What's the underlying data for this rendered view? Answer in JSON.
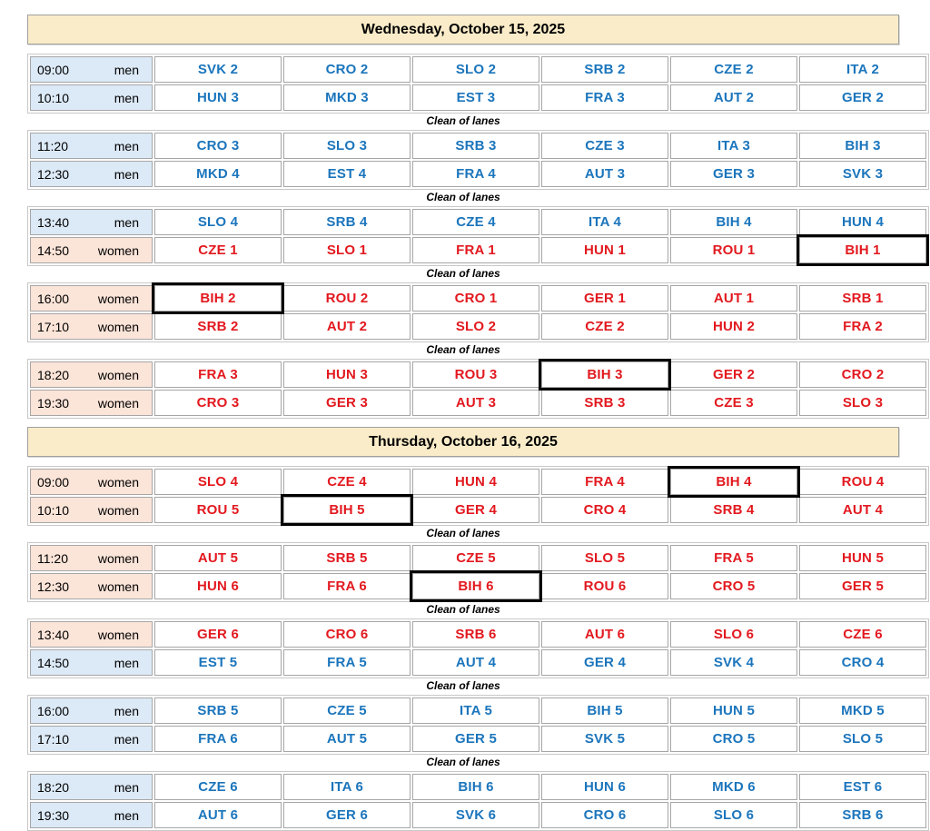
{
  "lanes_note": "Clean of lanes",
  "colors": {
    "header_bg": "#faecc9",
    "men_row_bg": "#dce9f6",
    "women_row_bg": "#fbe4d8",
    "men_text": "#1b75bc",
    "women_text": "#e2191f",
    "cell_border": "#a6a6a6",
    "highlight_box": "#000000"
  },
  "days": [
    {
      "title": "Wednesday, October 15, 2025",
      "blocks": [
        {
          "footer": true,
          "rows": [
            {
              "time": "09:00",
              "gender": "men",
              "cells": [
                "SVK 2",
                "CRO 2",
                "SLO 2",
                "SRB 2",
                "CZE 2",
                "ITA 2"
              ]
            },
            {
              "time": "10:10",
              "gender": "men",
              "cells": [
                "HUN 3",
                "MKD 3",
                "EST 3",
                "FRA 3",
                "AUT 2",
                "GER 2"
              ]
            }
          ]
        },
        {
          "footer": true,
          "rows": [
            {
              "time": "11:20",
              "gender": "men",
              "cells": [
                "CRO 3",
                "SLO 3",
                "SRB 3",
                "CZE 3",
                "ITA 3",
                "BIH 3"
              ]
            },
            {
              "time": "12:30",
              "gender": "men",
              "cells": [
                "MKD 4",
                "EST 4",
                "FRA 4",
                "AUT 3",
                "GER 3",
                "SVK 3"
              ]
            }
          ]
        },
        {
          "footer": true,
          "rows": [
            {
              "time": "13:40",
              "gender": "men",
              "cells": [
                "SLO 4",
                "SRB 4",
                "CZE 4",
                "ITA 4",
                "BIH 4",
                "HUN 4"
              ]
            },
            {
              "time": "14:50",
              "gender": "women",
              "cells": [
                "CZE 1",
                "SLO 1",
                "FRA 1",
                "HUN 1",
                "ROU 1",
                {
                  "label": "BIH 1",
                  "boxed": true
                }
              ]
            }
          ]
        },
        {
          "footer": true,
          "rows": [
            {
              "time": "16:00",
              "gender": "women",
              "cells": [
                {
                  "label": "BIH 2",
                  "boxed": true
                },
                "ROU 2",
                "CRO 1",
                "GER 1",
                "AUT 1",
                "SRB 1"
              ]
            },
            {
              "time": "17:10",
              "gender": "women",
              "cells": [
                "SRB 2",
                "AUT 2",
                "SLO 2",
                "CZE 2",
                "HUN 2",
                "FRA 2"
              ]
            }
          ]
        },
        {
          "footer": false,
          "rows": [
            {
              "time": "18:20",
              "gender": "women",
              "cells": [
                "FRA 3",
                "HUN 3",
                "ROU 3",
                {
                  "label": "BIH 3",
                  "boxed": true
                },
                "GER 2",
                "CRO 2"
              ]
            },
            {
              "time": "19:30",
              "gender": "women",
              "cells": [
                "CRO 3",
                "GER 3",
                "AUT 3",
                "SRB 3",
                "CZE 3",
                "SLO 3"
              ]
            }
          ]
        }
      ]
    },
    {
      "title": "Thursday, October 16, 2025",
      "blocks": [
        {
          "footer": true,
          "rows": [
            {
              "time": "09:00",
              "gender": "women",
              "cells": [
                "SLO 4",
                "CZE 4",
                "HUN 4",
                "FRA 4",
                {
                  "label": "BIH 4",
                  "boxed": true
                },
                "ROU 4"
              ]
            },
            {
              "time": "10:10",
              "gender": "women",
              "cells": [
                "ROU 5",
                {
                  "label": "BIH 5",
                  "boxed": true
                },
                "GER 4",
                "CRO 4",
                "SRB 4",
                "AUT 4"
              ]
            }
          ]
        },
        {
          "footer": true,
          "rows": [
            {
              "time": "11:20",
              "gender": "women",
              "cells": [
                "AUT 5",
                "SRB 5",
                "CZE 5",
                "SLO 5",
                "FRA 5",
                "HUN 5"
              ]
            },
            {
              "time": "12:30",
              "gender": "women",
              "cells": [
                "HUN 6",
                "FRA 6",
                {
                  "label": "BIH 6",
                  "boxed": true
                },
                "ROU 6",
                "CRO 5",
                "GER 5"
              ]
            }
          ]
        },
        {
          "footer": true,
          "rows": [
            {
              "time": "13:40",
              "gender": "women",
              "cells": [
                "GER 6",
                "CRO 6",
                "SRB 6",
                "AUT 6",
                "SLO 6",
                "CZE 6"
              ]
            },
            {
              "time": "14:50",
              "gender": "men",
              "cells": [
                "EST 5",
                "FRA 5",
                "AUT 4",
                "GER 4",
                "SVK 4",
                "CRO 4"
              ]
            }
          ]
        },
        {
          "footer": true,
          "rows": [
            {
              "time": "16:00",
              "gender": "men",
              "cells": [
                "SRB 5",
                "CZE 5",
                "ITA 5",
                "BIH 5",
                "HUN 5",
                "MKD 5"
              ]
            },
            {
              "time": "17:10",
              "gender": "men",
              "cells": [
                "FRA 6",
                "AUT 5",
                "GER 5",
                "SVK 5",
                "CRO 5",
                "SLO 5"
              ]
            }
          ]
        },
        {
          "footer": false,
          "rows": [
            {
              "time": "18:20",
              "gender": "men",
              "cells": [
                "CZE 6",
                "ITA 6",
                "BIH 6",
                "HUN 6",
                "MKD 6",
                "EST 6"
              ]
            },
            {
              "time": "19:30",
              "gender": "men",
              "cells": [
                "AUT 6",
                "GER 6",
                "SVK 6",
                "CRO 6",
                "SLO 6",
                "SRB 6"
              ]
            }
          ]
        }
      ]
    }
  ]
}
